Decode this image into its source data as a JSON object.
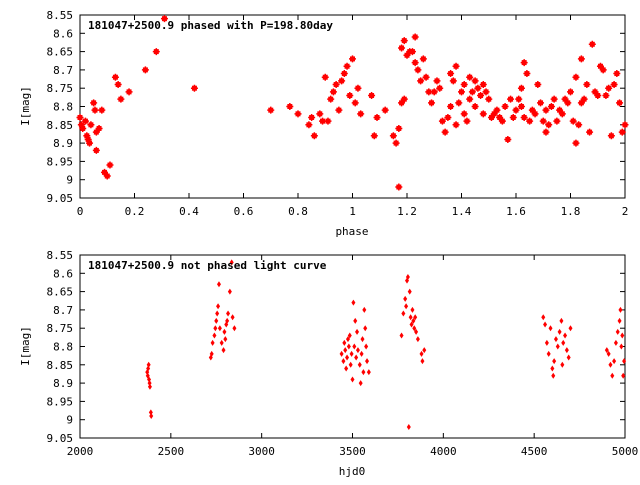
{
  "colors": {
    "points": "#ff0000",
    "axes": "#000000",
    "background": "#ffffff"
  },
  "chart_data": [
    {
      "type": "scatter",
      "title": "181047+2500.9 phased with P=198.80day",
      "xlabel": "phase",
      "ylabel": "I[mag]",
      "xlim": [
        0,
        2
      ],
      "ylim": [
        8.55,
        9.05
      ],
      "y_inverted": true,
      "grid": false,
      "legend": "none",
      "x_ticks": [
        0,
        0.2,
        0.4,
        0.6,
        0.8,
        1,
        1.2,
        1.4,
        1.6,
        1.8,
        2
      ],
      "x_tick_labels": [
        "0",
        "0.2",
        "0.4",
        "0.6",
        "0.8",
        "1",
        "1.2",
        "1.4",
        "1.6",
        "1.8",
        "2"
      ],
      "y_ticks": [
        8.55,
        8.6,
        8.65,
        8.7,
        8.75,
        8.8,
        8.85,
        8.9,
        8.95,
        9,
        9.05
      ],
      "y_tick_labels": [
        "8.55",
        "8.6",
        "8.65",
        "8.7",
        "8.75",
        "8.8",
        "8.85",
        "8.9",
        "8.95",
        "9",
        "9.05"
      ],
      "points": [
        [
          0.0,
          8.83
        ],
        [
          0.005,
          8.85
        ],
        [
          0.01,
          8.86
        ],
        [
          0.02,
          8.84
        ],
        [
          0.025,
          8.88
        ],
        [
          0.03,
          8.89
        ],
        [
          0.035,
          8.9
        ],
        [
          0.04,
          8.85
        ],
        [
          0.05,
          8.79
        ],
        [
          0.055,
          8.81
        ],
        [
          0.06,
          8.92
        ],
        [
          0.06,
          8.87
        ],
        [
          0.07,
          8.86
        ],
        [
          0.08,
          8.81
        ],
        [
          0.09,
          8.98
        ],
        [
          0.1,
          8.99
        ],
        [
          0.11,
          8.96
        ],
        [
          0.13,
          8.72
        ],
        [
          0.14,
          8.74
        ],
        [
          0.15,
          8.78
        ],
        [
          0.18,
          8.76
        ],
        [
          0.24,
          8.7
        ],
        [
          0.28,
          8.65
        ],
        [
          0.31,
          8.56
        ],
        [
          0.42,
          8.75
        ],
        [
          0.7,
          8.81
        ],
        [
          0.77,
          8.8
        ],
        [
          0.8,
          8.82
        ],
        [
          0.84,
          8.85
        ],
        [
          0.85,
          8.83
        ],
        [
          0.86,
          8.88
        ],
        [
          0.88,
          8.82
        ],
        [
          0.89,
          8.84
        ],
        [
          0.9,
          8.72
        ],
        [
          0.91,
          8.84
        ],
        [
          0.92,
          8.78
        ],
        [
          0.93,
          8.76
        ],
        [
          0.94,
          8.74
        ],
        [
          0.95,
          8.81
        ],
        [
          0.96,
          8.73
        ],
        [
          0.97,
          8.71
        ],
        [
          0.98,
          8.69
        ],
        [
          0.99,
          8.77
        ],
        [
          1.0,
          8.67
        ],
        [
          1.01,
          8.79
        ],
        [
          1.02,
          8.75
        ],
        [
          1.03,
          8.82
        ],
        [
          1.07,
          8.77
        ],
        [
          1.08,
          8.88
        ],
        [
          1.09,
          8.83
        ],
        [
          1.12,
          8.81
        ],
        [
          1.15,
          8.88
        ],
        [
          1.16,
          8.9
        ],
        [
          1.17,
          9.02
        ],
        [
          1.17,
          8.86
        ],
        [
          1.18,
          8.79
        ],
        [
          1.18,
          8.64
        ],
        [
          1.19,
          8.78
        ],
        [
          1.19,
          8.62
        ],
        [
          1.2,
          8.66
        ],
        [
          1.21,
          8.65
        ],
        [
          1.22,
          8.65
        ],
        [
          1.23,
          8.68
        ],
        [
          1.23,
          8.61
        ],
        [
          1.24,
          8.7
        ],
        [
          1.25,
          8.73
        ],
        [
          1.26,
          8.67
        ],
        [
          1.27,
          8.72
        ],
        [
          1.28,
          8.76
        ],
        [
          1.29,
          8.79
        ],
        [
          1.3,
          8.76
        ],
        [
          1.31,
          8.73
        ],
        [
          1.32,
          8.75
        ],
        [
          1.33,
          8.84
        ],
        [
          1.34,
          8.87
        ],
        [
          1.35,
          8.83
        ],
        [
          1.36,
          8.8
        ],
        [
          1.36,
          8.71
        ],
        [
          1.37,
          8.73
        ],
        [
          1.38,
          8.85
        ],
        [
          1.38,
          8.69
        ],
        [
          1.39,
          8.79
        ],
        [
          1.4,
          8.76
        ],
        [
          1.41,
          8.82
        ],
        [
          1.41,
          8.74
        ],
        [
          1.42,
          8.84
        ],
        [
          1.43,
          8.72
        ],
        [
          1.43,
          8.78
        ],
        [
          1.44,
          8.76
        ],
        [
          1.45,
          8.73
        ],
        [
          1.45,
          8.8
        ],
        [
          1.46,
          8.75
        ],
        [
          1.47,
          8.77
        ],
        [
          1.48,
          8.74
        ],
        [
          1.48,
          8.82
        ],
        [
          1.49,
          8.76
        ],
        [
          1.5,
          8.78
        ],
        [
          1.51,
          8.83
        ],
        [
          1.52,
          8.82
        ],
        [
          1.53,
          8.81
        ],
        [
          1.54,
          8.83
        ],
        [
          1.55,
          8.84
        ],
        [
          1.56,
          8.8
        ],
        [
          1.57,
          8.89
        ],
        [
          1.58,
          8.78
        ],
        [
          1.59,
          8.83
        ],
        [
          1.6,
          8.81
        ],
        [
          1.61,
          8.78
        ],
        [
          1.62,
          8.8
        ],
        [
          1.62,
          8.75
        ],
        [
          1.63,
          8.83
        ],
        [
          1.63,
          8.68
        ],
        [
          1.64,
          8.71
        ],
        [
          1.65,
          8.84
        ],
        [
          1.66,
          8.81
        ],
        [
          1.67,
          8.82
        ],
        [
          1.68,
          8.74
        ],
        [
          1.69,
          8.79
        ],
        [
          1.7,
          8.84
        ],
        [
          1.71,
          8.81
        ],
        [
          1.71,
          8.87
        ],
        [
          1.72,
          8.85
        ],
        [
          1.73,
          8.8
        ],
        [
          1.74,
          8.78
        ],
        [
          1.75,
          8.84
        ],
        [
          1.76,
          8.81
        ],
        [
          1.77,
          8.82
        ],
        [
          1.78,
          8.78
        ],
        [
          1.79,
          8.79
        ],
        [
          1.8,
          8.76
        ],
        [
          1.81,
          8.84
        ],
        [
          1.82,
          8.9
        ],
        [
          1.82,
          8.72
        ],
        [
          1.83,
          8.85
        ],
        [
          1.84,
          8.79
        ],
        [
          1.84,
          8.67
        ],
        [
          1.85,
          8.78
        ],
        [
          1.86,
          8.74
        ],
        [
          1.87,
          8.87
        ],
        [
          1.88,
          8.63
        ],
        [
          1.89,
          8.76
        ],
        [
          1.9,
          8.77
        ],
        [
          1.91,
          8.69
        ],
        [
          1.92,
          8.7
        ],
        [
          1.93,
          8.77
        ],
        [
          1.94,
          8.75
        ],
        [
          1.95,
          8.88
        ],
        [
          1.96,
          8.74
        ],
        [
          1.97,
          8.71
        ],
        [
          1.98,
          8.79
        ],
        [
          1.99,
          8.87
        ],
        [
          2.0,
          8.85
        ]
      ]
    },
    {
      "type": "scatter",
      "title": "181047+2500.9 not phased light curve",
      "xlabel": "hjd0",
      "ylabel": "I[mag]",
      "xlim": [
        2000,
        5000
      ],
      "ylim": [
        8.55,
        9.05
      ],
      "y_inverted": true,
      "grid": false,
      "legend": "none",
      "x_ticks": [
        2000,
        2500,
        3000,
        3500,
        4000,
        4500,
        5000
      ],
      "x_tick_labels": [
        "2000",
        "2500",
        "3000",
        "3500",
        "4000",
        "4500",
        "5000"
      ],
      "y_ticks": [
        8.55,
        8.6,
        8.65,
        8.7,
        8.75,
        8.8,
        8.85,
        8.9,
        8.95,
        9,
        9.05
      ],
      "y_tick_labels": [
        "8.55",
        "8.6",
        "8.65",
        "8.7",
        "8.75",
        "8.8",
        "8.85",
        "8.9",
        "8.95",
        "9",
        "9.05"
      ],
      "points": [
        [
          2370,
          8.87
        ],
        [
          2373,
          8.88
        ],
        [
          2375,
          8.86
        ],
        [
          2378,
          8.85
        ],
        [
          2380,
          8.89
        ],
        [
          2383,
          8.9
        ],
        [
          2385,
          8.91
        ],
        [
          2390,
          8.98
        ],
        [
          2392,
          8.99
        ],
        [
          2720,
          8.83
        ],
        [
          2725,
          8.82
        ],
        [
          2730,
          8.79
        ],
        [
          2740,
          8.77
        ],
        [
          2745,
          8.75
        ],
        [
          2750,
          8.73
        ],
        [
          2755,
          8.71
        ],
        [
          2760,
          8.69
        ],
        [
          2765,
          8.63
        ],
        [
          2770,
          8.75
        ],
        [
          2780,
          8.79
        ],
        [
          2790,
          8.81
        ],
        [
          2795,
          8.76
        ],
        [
          2800,
          8.78
        ],
        [
          2805,
          8.74
        ],
        [
          2810,
          8.73
        ],
        [
          2815,
          8.71
        ],
        [
          2825,
          8.65
        ],
        [
          2835,
          8.57
        ],
        [
          2840,
          8.72
        ],
        [
          2850,
          8.75
        ],
        [
          3440,
          8.82
        ],
        [
          3450,
          8.84
        ],
        [
          3455,
          8.79
        ],
        [
          3460,
          8.81
        ],
        [
          3465,
          8.86
        ],
        [
          3470,
          8.83
        ],
        [
          3475,
          8.78
        ],
        [
          3480,
          8.8
        ],
        [
          3485,
          8.77
        ],
        [
          3490,
          8.85
        ],
        [
          3495,
          8.82
        ],
        [
          3500,
          8.89
        ],
        [
          3505,
          8.68
        ],
        [
          3510,
          8.8
        ],
        [
          3515,
          8.73
        ],
        [
          3520,
          8.83
        ],
        [
          3525,
          8.76
        ],
        [
          3530,
          8.81
        ],
        [
          3540,
          8.85
        ],
        [
          3545,
          8.9
        ],
        [
          3550,
          8.82
        ],
        [
          3555,
          8.78
        ],
        [
          3560,
          8.87
        ],
        [
          3565,
          8.7
        ],
        [
          3570,
          8.75
        ],
        [
          3575,
          8.8
        ],
        [
          3580,
          8.84
        ],
        [
          3590,
          8.87
        ],
        [
          3770,
          8.77
        ],
        [
          3780,
          8.71
        ],
        [
          3790,
          8.67
        ],
        [
          3795,
          8.69
        ],
        [
          3800,
          8.62
        ],
        [
          3805,
          8.61
        ],
        [
          3810,
          9.02
        ],
        [
          3815,
          8.65
        ],
        [
          3820,
          8.72
        ],
        [
          3825,
          8.74
        ],
        [
          3830,
          8.7
        ],
        [
          3835,
          8.73
        ],
        [
          3840,
          8.75
        ],
        [
          3845,
          8.72
        ],
        [
          3850,
          8.76
        ],
        [
          3860,
          8.78
        ],
        [
          3880,
          8.82
        ],
        [
          3885,
          8.84
        ],
        [
          3895,
          8.81
        ],
        [
          4550,
          8.72
        ],
        [
          4560,
          8.74
        ],
        [
          4570,
          8.79
        ],
        [
          4580,
          8.82
        ],
        [
          4590,
          8.75
        ],
        [
          4600,
          8.86
        ],
        [
          4605,
          8.88
        ],
        [
          4610,
          8.84
        ],
        [
          4620,
          8.78
        ],
        [
          4630,
          8.8
        ],
        [
          4640,
          8.76
        ],
        [
          4650,
          8.73
        ],
        [
          4655,
          8.85
        ],
        [
          4660,
          8.79
        ],
        [
          4670,
          8.77
        ],
        [
          4680,
          8.81
        ],
        [
          4690,
          8.83
        ],
        [
          4700,
          8.75
        ],
        [
          4900,
          8.81
        ],
        [
          4910,
          8.82
        ],
        [
          4920,
          8.85
        ],
        [
          4930,
          8.88
        ],
        [
          4940,
          8.84
        ],
        [
          4950,
          8.79
        ],
        [
          4960,
          8.76
        ],
        [
          4970,
          8.73
        ],
        [
          4975,
          8.7
        ],
        [
          4980,
          8.8
        ],
        [
          4985,
          8.77
        ],
        [
          4990,
          8.88
        ],
        [
          4995,
          8.84
        ]
      ]
    }
  ]
}
